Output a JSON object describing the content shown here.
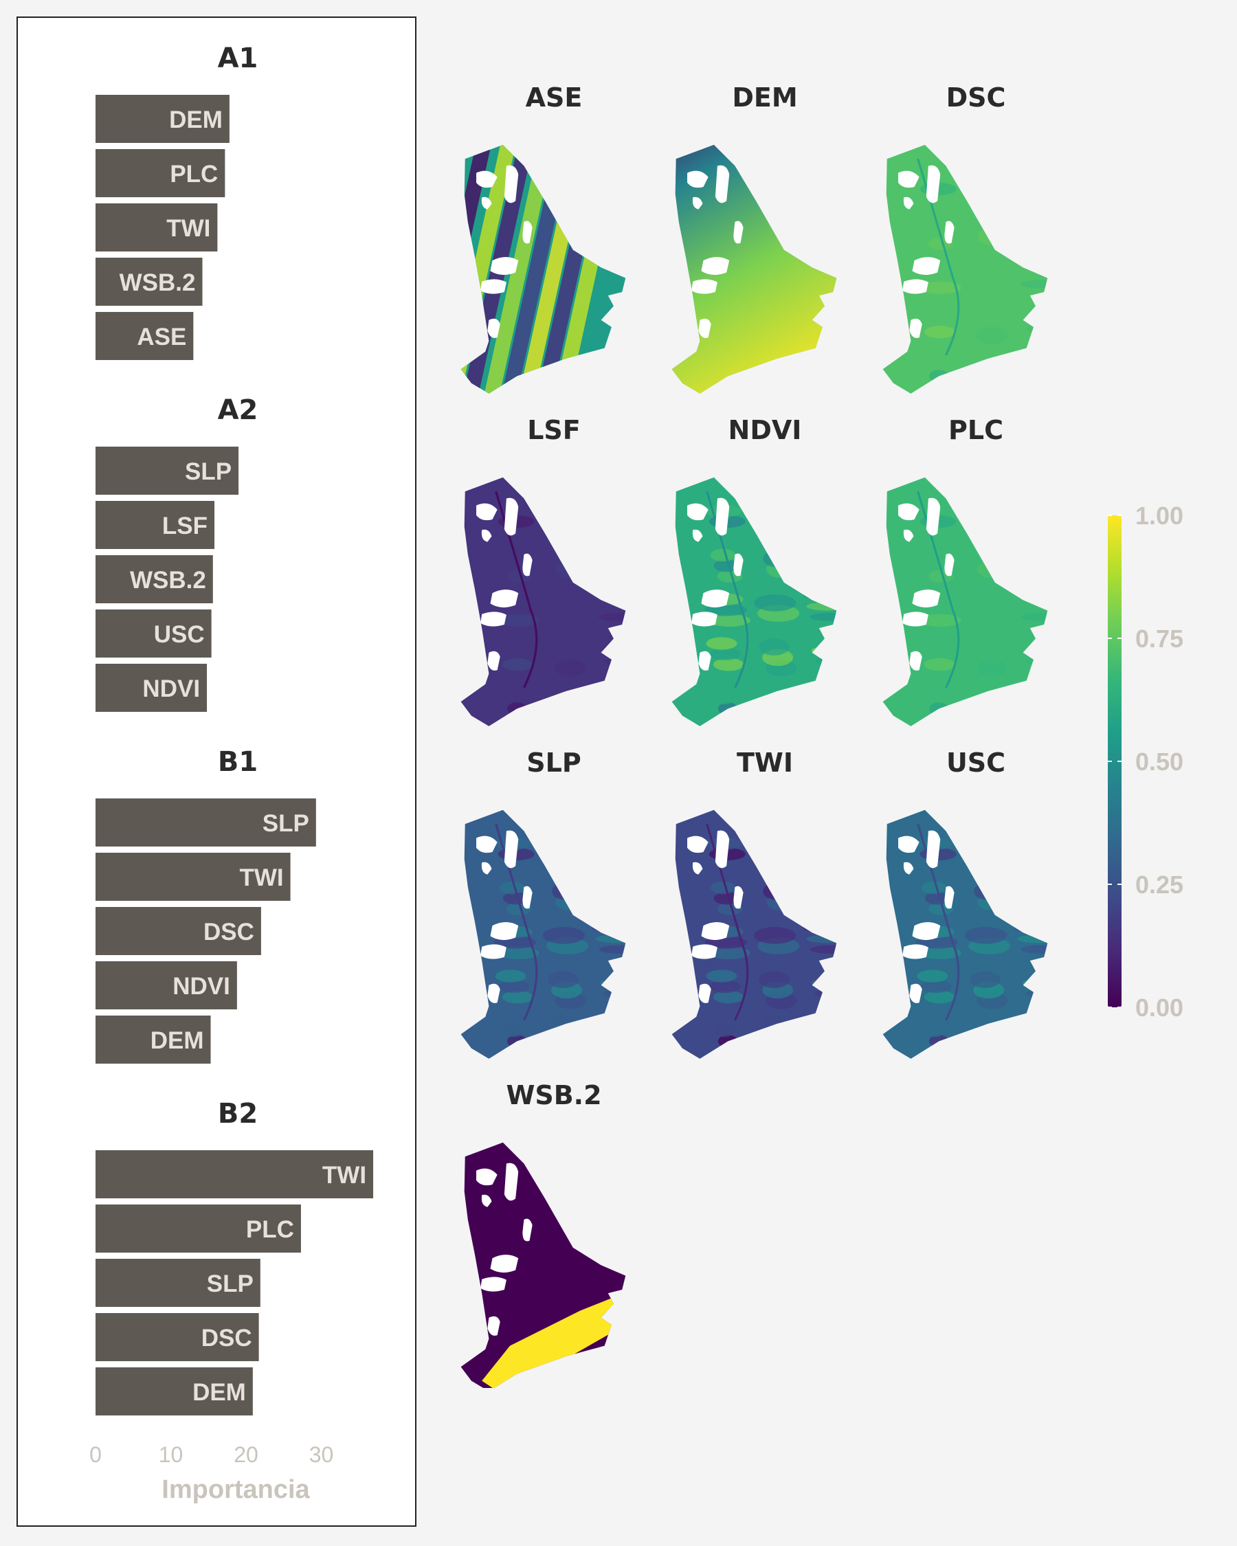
{
  "colors": {
    "bar_fill": "#5e5953",
    "bar_label": "#e6e2da",
    "axis_text": "#c9c4bc",
    "title_text": "#2a2a2a",
    "panel_bg": "#ffffff",
    "page_bg": "#f4f4f4",
    "map_hole": "#ffffff"
  },
  "chart_data": [
    {
      "type": "bar",
      "orientation": "horizontal",
      "xlabel": "Importancia",
      "xlim": [
        0,
        38
      ],
      "xticks": [
        0,
        10,
        20,
        30
      ],
      "panels": [
        {
          "title": "A1",
          "categories": [
            "DEM",
            "PLC",
            "TWI",
            "WSB.2",
            "ASE"
          ],
          "values": [
            17.8,
            17.2,
            16.2,
            14.2,
            13.0
          ]
        },
        {
          "title": "A2",
          "categories": [
            "SLP",
            "LSF",
            "WSB.2",
            "USC",
            "NDVI"
          ],
          "values": [
            19.0,
            15.8,
            15.6,
            15.4,
            14.8
          ]
        },
        {
          "title": "B1",
          "categories": [
            "SLP",
            "TWI",
            "DSC",
            "NDVI",
            "DEM"
          ],
          "values": [
            29.3,
            25.9,
            22.0,
            18.8,
            15.3
          ]
        },
        {
          "title": "B2",
          "categories": [
            "TWI",
            "PLC",
            "SLP",
            "DSC",
            "DEM"
          ],
          "values": [
            36.9,
            27.3,
            21.9,
            21.7,
            20.9
          ]
        }
      ]
    },
    {
      "type": "heatmap",
      "colormap": "viridis",
      "colorbar": {
        "ticks": [
          "0.00",
          "0.25",
          "0.50",
          "0.75",
          "1.00"
        ],
        "range": [
          0,
          1
        ]
      },
      "maps": [
        {
          "name": "ASE",
          "typical": 0.55,
          "pattern": "striped"
        },
        {
          "name": "DEM",
          "typical": 0.7,
          "pattern": "gradient"
        },
        {
          "name": "DSC",
          "typical": 0.72,
          "pattern": "uniform"
        },
        {
          "name": "LSF",
          "typical": 0.15,
          "pattern": "uniform"
        },
        {
          "name": "NDVI",
          "typical": 0.62,
          "pattern": "mottled"
        },
        {
          "name": "PLC",
          "typical": 0.68,
          "pattern": "uniform"
        },
        {
          "name": "SLP",
          "typical": 0.3,
          "pattern": "mottled"
        },
        {
          "name": "TWI",
          "typical": 0.22,
          "pattern": "mottled"
        },
        {
          "name": "USC",
          "typical": 0.35,
          "pattern": "mottled"
        },
        {
          "name": "WSB.2",
          "typical": 0.0,
          "pattern": "zones"
        }
      ]
    }
  ]
}
